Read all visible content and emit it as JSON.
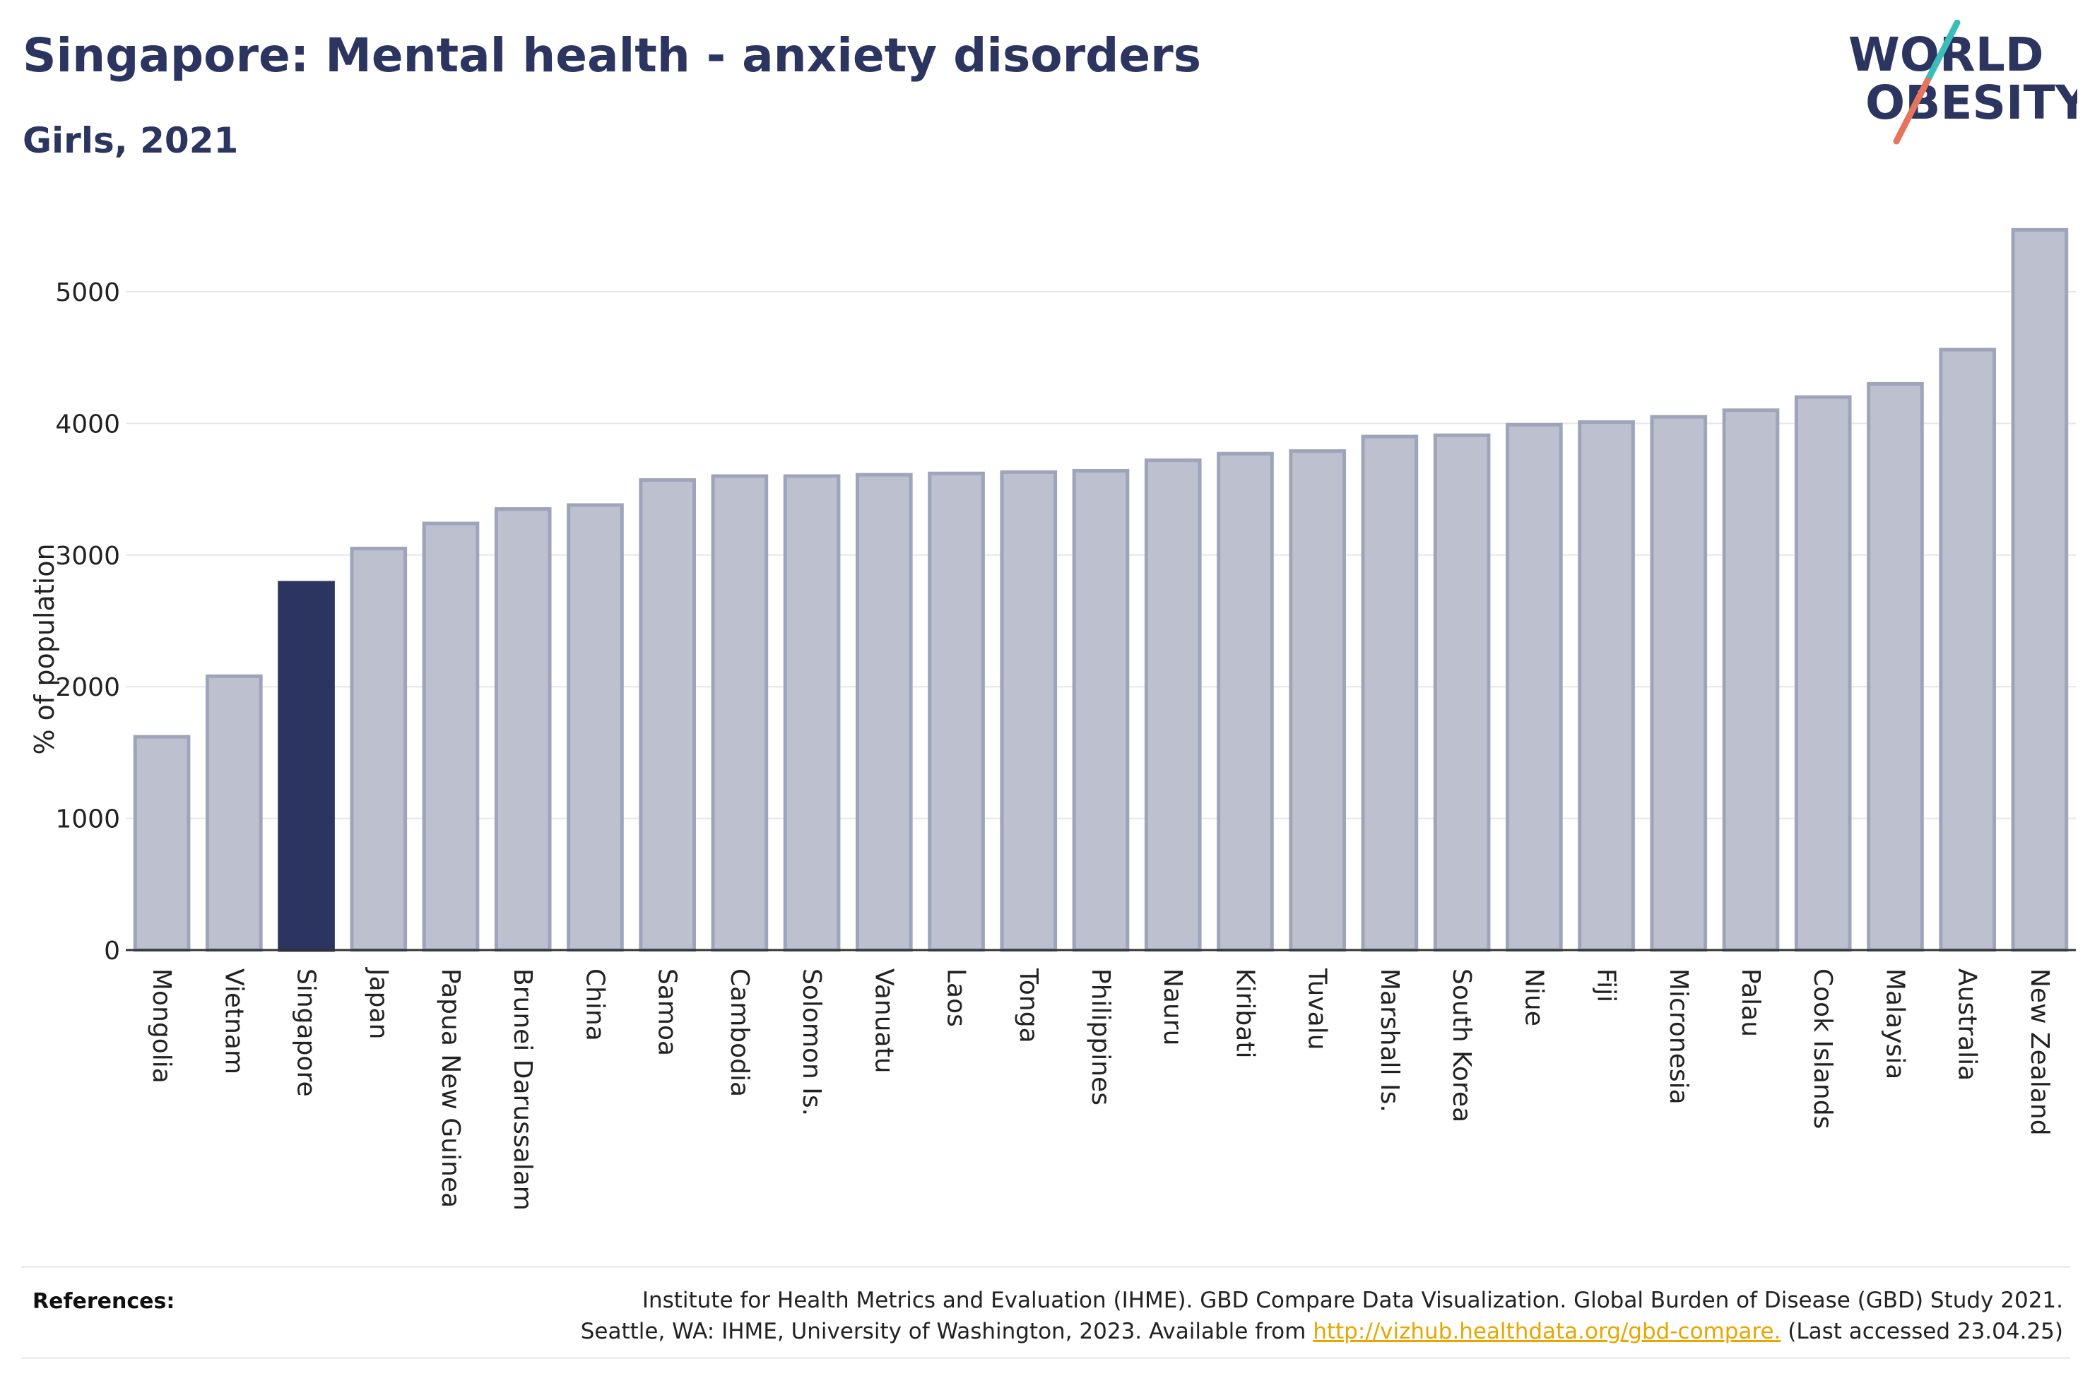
{
  "header": {
    "title": "Singapore: Mental health - anxiety disorders",
    "subtitle": "Girls, 2021"
  },
  "logo": {
    "line1": "WORLD",
    "line2": "OBESITY",
    "colors": {
      "text": "#2c3560",
      "slash_teal": "#3dbdb8",
      "slash_coral": "#e8735f"
    }
  },
  "chart_data": {
    "type": "bar",
    "title": "Singapore: Mental health - anxiety disorders",
    "subtitle": "Girls, 2021",
    "xlabel": "",
    "ylabel": "% of population",
    "ylim": [
      0,
      5500
    ],
    "yticks": [
      0,
      1000,
      2000,
      3000,
      4000,
      5000
    ],
    "grid": true,
    "highlight": "Singapore",
    "colors": {
      "bar": "#bcc0cf",
      "bar_edge": "#9ea4ba",
      "highlight": "#2c3560",
      "grid": "#e6e6ea",
      "axis": "#333333"
    },
    "categories": [
      "Mongolia",
      "Vietnam",
      "Singapore",
      "Japan",
      "Papua New Guinea",
      "Brunei Darussalam",
      "China",
      "Samoa",
      "Cambodia",
      "Solomon Is.",
      "Vanuatu",
      "Laos",
      "Tonga",
      "Philippines",
      "Nauru",
      "Kiribati",
      "Tuvalu",
      "Marshall Is.",
      "South Korea",
      "Niue",
      "Fiji",
      "Micronesia",
      "Palau",
      "Cook Islands",
      "Malaysia",
      "Australia",
      "New Zealand"
    ],
    "values": [
      1620,
      2080,
      2790,
      3050,
      3240,
      3350,
      3380,
      3570,
      3600,
      3600,
      3610,
      3620,
      3630,
      3640,
      3720,
      3770,
      3790,
      3900,
      3910,
      3990,
      4010,
      4050,
      4100,
      4200,
      4300,
      4560,
      5470
    ]
  },
  "references": {
    "label": "References:",
    "line1": "Institute for Health Metrics and Evaluation (IHME). GBD Compare Data Visualization. Global Burden of Disease (GBD) Study 2021.",
    "line2_prefix": "Seattle, WA: IHME, University of Washington, 2023. Available from ",
    "link": "http://vizhub.healthdata.org/gbd-compare.",
    "line2_suffix": " (Last accessed 23.04.25)"
  }
}
